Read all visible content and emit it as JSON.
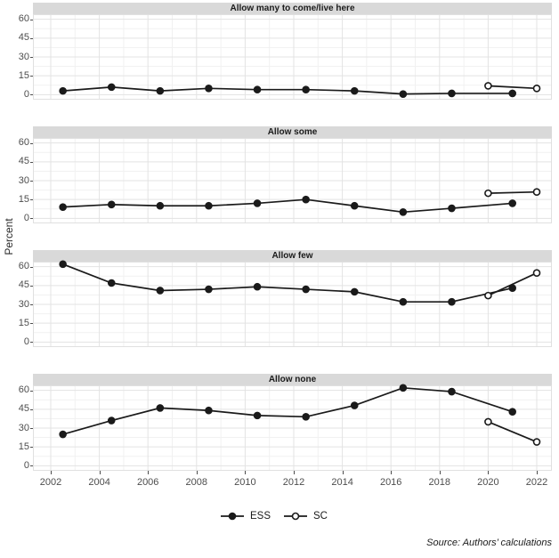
{
  "y_axis": {
    "title": "Percent",
    "ticks": [
      60,
      45,
      30,
      15,
      0
    ]
  },
  "x_axis": {
    "ticks": [
      2002,
      2004,
      2006,
      2008,
      2010,
      2012,
      2014,
      2016,
      2018,
      2020,
      2022
    ]
  },
  "legend": [
    {
      "label": "ESS",
      "marker": "filled-circle"
    },
    {
      "label": "SC",
      "marker": "open-circle"
    }
  ],
  "source_note": "Source: Authors’ calculations",
  "colors": {
    "line": "#1a1a1a",
    "strip_bg": "#d9d9d9",
    "grid_major": "#e3e3e3",
    "grid_minor": "#f1f1f1",
    "panel_border": "#e0e0e0",
    "tick_label": "#4d4d4d"
  },
  "chart_data": [
    {
      "type": "line",
      "title": "Allow many to come/live here",
      "ylim": [
        -4,
        64
      ],
      "xlim": [
        2001.27,
        2022.62
      ],
      "yticks": [
        0,
        15,
        30,
        45,
        60
      ],
      "series": [
        {
          "name": "ESS",
          "marker": "filled-circle",
          "x": [
            2002.5,
            2004.5,
            2006.5,
            2008.5,
            2010.5,
            2012.5,
            2014.5,
            2016.5,
            2018.5,
            2021
          ],
          "y": [
            3,
            6,
            3,
            5,
            4,
            4,
            3,
            0.5,
            1,
            1
          ]
        },
        {
          "name": "SC",
          "marker": "open-circle",
          "x": [
            2020,
            2022
          ],
          "y": [
            7,
            5
          ]
        }
      ]
    },
    {
      "type": "line",
      "title": "Allow some",
      "ylim": [
        -4,
        64
      ],
      "xlim": [
        2001.27,
        2022.62
      ],
      "yticks": [
        0,
        15,
        30,
        45,
        60
      ],
      "series": [
        {
          "name": "ESS",
          "marker": "filled-circle",
          "x": [
            2002.5,
            2004.5,
            2006.5,
            2008.5,
            2010.5,
            2012.5,
            2014.5,
            2016.5,
            2018.5,
            2021
          ],
          "y": [
            9,
            11,
            10,
            10,
            12,
            15,
            10,
            5,
            8,
            12
          ]
        },
        {
          "name": "SC",
          "marker": "open-circle",
          "x": [
            2020,
            2022
          ],
          "y": [
            20,
            21
          ]
        }
      ]
    },
    {
      "type": "line",
      "title": "Allow few",
      "ylim": [
        -4,
        64
      ],
      "xlim": [
        2001.27,
        2022.62
      ],
      "yticks": [
        0,
        15,
        30,
        45,
        60
      ],
      "series": [
        {
          "name": "ESS",
          "marker": "filled-circle",
          "x": [
            2002.5,
            2004.5,
            2006.5,
            2008.5,
            2010.5,
            2012.5,
            2014.5,
            2016.5,
            2018.5,
            2021
          ],
          "y": [
            62,
            47,
            41,
            42,
            44,
            42,
            40,
            32,
            32,
            43
          ]
        },
        {
          "name": "SC",
          "marker": "open-circle",
          "x": [
            2020,
            2022
          ],
          "y": [
            37,
            55
          ]
        }
      ]
    },
    {
      "type": "line",
      "title": "Allow none",
      "ylim": [
        -4,
        64
      ],
      "xlim": [
        2001.27,
        2022.62
      ],
      "yticks": [
        0,
        15,
        30,
        45,
        60
      ],
      "series": [
        {
          "name": "ESS",
          "marker": "filled-circle",
          "x": [
            2002.5,
            2004.5,
            2006.5,
            2008.5,
            2010.5,
            2012.5,
            2014.5,
            2016.5,
            2018.5,
            2021
          ],
          "y": [
            25,
            36,
            46,
            44,
            40,
            39,
            48,
            62,
            59,
            43
          ]
        },
        {
          "name": "SC",
          "marker": "open-circle",
          "x": [
            2020,
            2022
          ],
          "y": [
            35,
            19
          ]
        }
      ]
    }
  ]
}
